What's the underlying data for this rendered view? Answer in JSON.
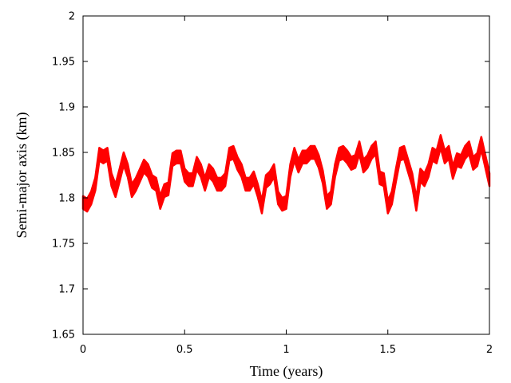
{
  "chart_data": {
    "type": "line",
    "title": "",
    "xlabel": "Time (years)",
    "ylabel": "Semi-major axis (km)",
    "xlim": [
      0,
      2
    ],
    "ylim": [
      1.65,
      2
    ],
    "x_ticks": [
      0,
      0.5,
      1,
      1.5,
      2
    ],
    "x_tick_labels": [
      "0",
      "0.5",
      "1",
      "1.5",
      "2"
    ],
    "y_ticks": [
      1.65,
      1.7,
      1.75,
      1.8,
      1.85,
      1.9,
      1.95,
      2
    ],
    "y_tick_labels": [
      "1.65",
      "1.7",
      "1.75",
      "1.8",
      "1.85",
      "1.9",
      "1.95",
      "2"
    ],
    "grid": false,
    "legend": "none",
    "series": [
      {
        "color": "#ff0000",
        "band_halfwidth": 0.007,
        "x": [
          0,
          0.02,
          0.04,
          0.06,
          0.08,
          0.1,
          0.12,
          0.14,
          0.16,
          0.18,
          0.2,
          0.22,
          0.24,
          0.26,
          0.28,
          0.3,
          0.32,
          0.34,
          0.36,
          0.38,
          0.4,
          0.42,
          0.44,
          0.46,
          0.48,
          0.5,
          0.52,
          0.54,
          0.56,
          0.58,
          0.6,
          0.62,
          0.64,
          0.66,
          0.68,
          0.7,
          0.72,
          0.74,
          0.76,
          0.78,
          0.8,
          0.82,
          0.84,
          0.86,
          0.88,
          0.9,
          0.92,
          0.94,
          0.96,
          0.98,
          1.0,
          1.02,
          1.04,
          1.06,
          1.08,
          1.1,
          1.12,
          1.14,
          1.16,
          1.18,
          1.2,
          1.22,
          1.24,
          1.26,
          1.28,
          1.3,
          1.32,
          1.34,
          1.36,
          1.38,
          1.4,
          1.42,
          1.44,
          1.46,
          1.48,
          1.5,
          1.52,
          1.54,
          1.56,
          1.58,
          1.6,
          1.62,
          1.64,
          1.66,
          1.68,
          1.7,
          1.72,
          1.74,
          1.76,
          1.78,
          1.8,
          1.82,
          1.84,
          1.86,
          1.88,
          1.9,
          1.92,
          1.94,
          1.96,
          1.98,
          2.0
        ],
        "y": [
          1.795,
          1.792,
          1.8,
          1.815,
          1.848,
          1.845,
          1.848,
          1.82,
          1.808,
          1.825,
          1.843,
          1.83,
          1.808,
          1.815,
          1.825,
          1.835,
          1.83,
          1.818,
          1.815,
          1.795,
          1.808,
          1.81,
          1.842,
          1.845,
          1.845,
          1.825,
          1.82,
          1.82,
          1.838,
          1.83,
          1.815,
          1.83,
          1.825,
          1.815,
          1.815,
          1.82,
          1.848,
          1.85,
          1.838,
          1.83,
          1.815,
          1.815,
          1.822,
          1.808,
          1.79,
          1.818,
          1.822,
          1.83,
          1.8,
          1.793,
          1.795,
          1.83,
          1.848,
          1.835,
          1.845,
          1.845,
          1.85,
          1.85,
          1.84,
          1.823,
          1.795,
          1.8,
          1.83,
          1.848,
          1.85,
          1.845,
          1.838,
          1.84,
          1.855,
          1.835,
          1.84,
          1.85,
          1.855,
          1.822,
          1.82,
          1.79,
          1.8,
          1.825,
          1.848,
          1.85,
          1.835,
          1.82,
          1.793,
          1.825,
          1.82,
          1.83,
          1.848,
          1.845,
          1.862,
          1.845,
          1.85,
          1.828,
          1.842,
          1.84,
          1.85,
          1.855,
          1.838,
          1.842,
          1.86,
          1.84,
          1.82
        ]
      }
    ]
  }
}
